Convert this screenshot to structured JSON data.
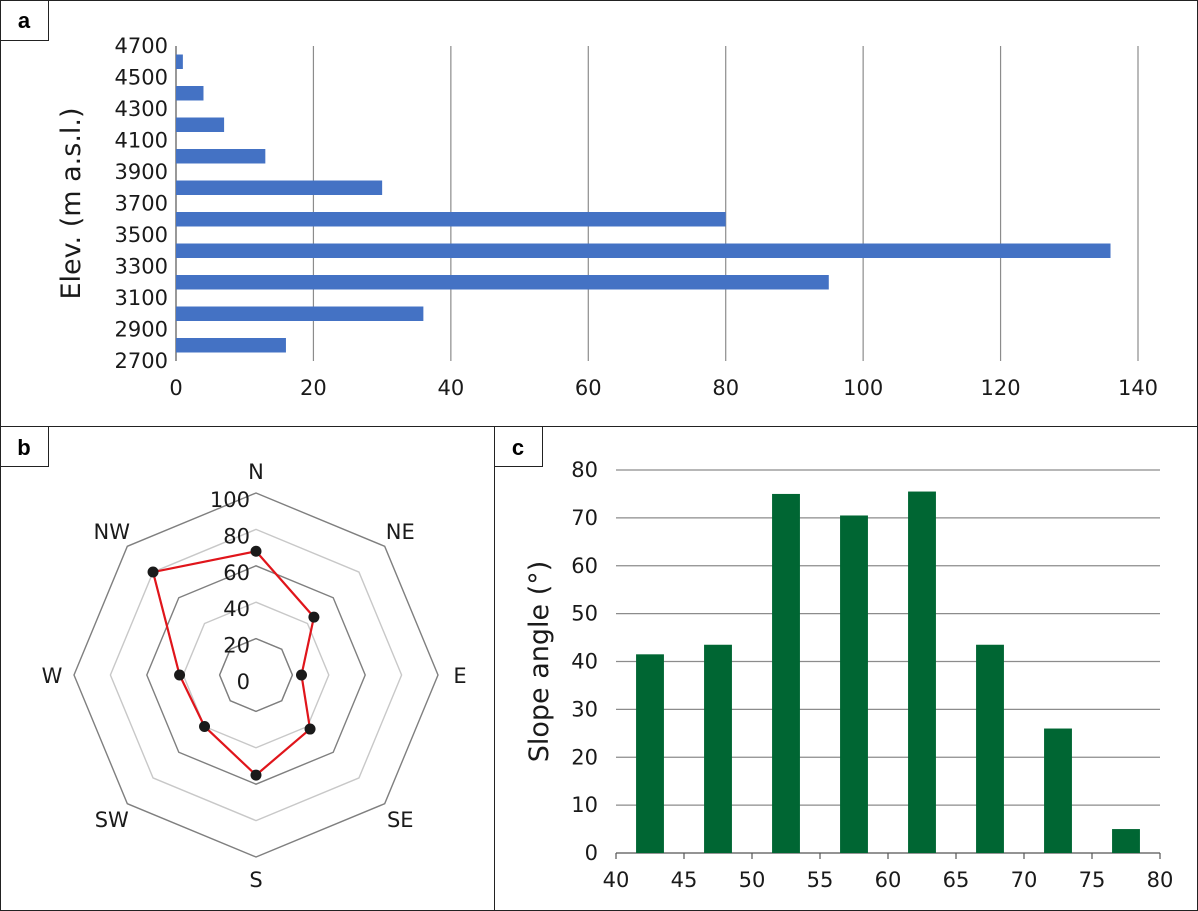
{
  "chart_data": [
    {
      "panel": "a",
      "type": "bar",
      "orientation": "horizontal",
      "ylabel": "Elev. (m a.s.l.)",
      "xlabel": "",
      "categories": [
        "2800",
        "3000",
        "3200",
        "3400",
        "3600",
        "3800",
        "4000",
        "4200",
        "4400",
        "4600"
      ],
      "values": [
        16,
        36,
        95,
        136,
        80,
        30,
        13,
        7,
        4,
        1
      ],
      "y_tick_labels": [
        "2700",
        "2900",
        "3100",
        "3300",
        "3500",
        "3700",
        "3900",
        "4100",
        "4300",
        "4500",
        "4700"
      ],
      "x_tick_labels": [
        "0",
        "20",
        "40",
        "60",
        "80",
        "100",
        "120",
        "140"
      ],
      "xlim": [
        0,
        140
      ],
      "ylim": [
        2700,
        4700
      ],
      "grid": "vertical",
      "color": "#4472c4"
    },
    {
      "panel": "b",
      "type": "radar",
      "axes": [
        "N",
        "NE",
        "E",
        "SE",
        "S",
        "SW",
        "W",
        "NW"
      ],
      "values": [
        68,
        45,
        25,
        42,
        55,
        40,
        42,
        80
      ],
      "r_tick_labels": [
        "0",
        "20",
        "40",
        "60",
        "80",
        "100"
      ],
      "rlim": [
        0,
        100
      ],
      "color": "#e0151b",
      "marker_color": "#1a1a1a"
    },
    {
      "panel": "c",
      "type": "bar",
      "orientation": "vertical",
      "ylabel": "Slope angle (°)",
      "xlabel": "",
      "x": [
        42.5,
        47.5,
        52.5,
        57.5,
        62.5,
        67.5,
        72.5,
        77.5
      ],
      "values": [
        41.5,
        43.5,
        75,
        70.5,
        75.5,
        43.5,
        26,
        5
      ],
      "x_tick_labels": [
        "40",
        "45",
        "50",
        "55",
        "60",
        "65",
        "70",
        "75",
        "80"
      ],
      "y_tick_labels": [
        "0",
        "10",
        "20",
        "30",
        "40",
        "50",
        "60",
        "70",
        "80"
      ],
      "xlim": [
        40,
        80
      ],
      "ylim": [
        0,
        80
      ],
      "grid": "horizontal",
      "color": "#006633"
    }
  ]
}
